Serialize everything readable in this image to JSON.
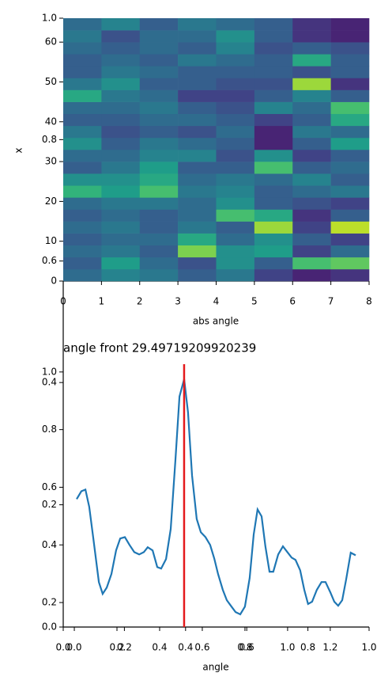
{
  "chart_data": [
    {
      "type": "heatmap",
      "ylabel": "x",
      "xlabel": "abs angle",
      "colormap": "viridis",
      "xlim": [
        0,
        8
      ],
      "xticks": [
        0,
        1,
        2,
        3,
        4,
        5,
        6,
        7,
        8
      ],
      "ylim": [
        0,
        66
      ],
      "yticks": [
        0,
        10,
        20,
        30,
        40,
        50,
        60
      ],
      "y2lim": [
        0.567,
        1.0
      ],
      "y2ticks": [
        0.6,
        0.8,
        {
          "value": 1,
          "label": "1.0"
        }
      ],
      "z": [
        [
          0.35,
          0.45,
          0.4,
          0.3,
          0.4,
          0.2,
          0.1,
          0.15
        ],
        [
          0.3,
          0.55,
          0.35,
          0.25,
          0.5,
          0.3,
          0.7,
          0.75
        ],
        [
          0.35,
          0.4,
          0.3,
          0.8,
          0.5,
          0.55,
          0.2,
          0.35
        ],
        [
          0.3,
          0.35,
          0.35,
          0.6,
          0.35,
          0.5,
          0.3,
          0.2
        ],
        [
          0.35,
          0.4,
          0.3,
          0.4,
          0.3,
          0.85,
          0.2,
          0.9
        ],
        [
          0.3,
          0.35,
          0.3,
          0.35,
          0.7,
          0.6,
          0.15,
          0.3
        ],
        [
          0.35,
          0.4,
          0.4,
          0.35,
          0.5,
          0.3,
          0.25,
          0.2
        ],
        [
          0.65,
          0.55,
          0.7,
          0.4,
          0.45,
          0.3,
          0.35,
          0.4
        ],
        [
          0.5,
          0.5,
          0.6,
          0.35,
          0.4,
          0.35,
          0.45,
          0.3
        ],
        [
          0.3,
          0.4,
          0.55,
          0.3,
          0.3,
          0.7,
          0.3,
          0.35
        ],
        [
          0.35,
          0.35,
          0.45,
          0.45,
          0.25,
          0.5,
          0.2,
          0.3
        ],
        [
          0.5,
          0.3,
          0.4,
          0.35,
          0.3,
          0.1,
          0.3,
          0.55
        ],
        [
          0.4,
          0.25,
          0.3,
          0.25,
          0.35,
          0.1,
          0.4,
          0.35
        ],
        [
          0.3,
          0.3,
          0.35,
          0.35,
          0.3,
          0.2,
          0.3,
          0.6
        ],
        [
          0.35,
          0.35,
          0.4,
          0.3,
          0.25,
          0.45,
          0.35,
          0.7
        ],
        [
          0.6,
          0.4,
          0.35,
          0.2,
          0.2,
          0.3,
          0.45,
          0.3
        ],
        [
          0.4,
          0.5,
          0.3,
          0.3,
          0.25,
          0.25,
          0.85,
          0.15
        ],
        [
          0.3,
          0.4,
          0.35,
          0.3,
          0.3,
          0.3,
          0.25,
          0.3
        ],
        [
          0.3,
          0.35,
          0.3,
          0.4,
          0.35,
          0.3,
          0.6,
          0.3
        ],
        [
          0.35,
          0.3,
          0.35,
          0.3,
          0.45,
          0.25,
          0.3,
          0.25
        ],
        [
          0.4,
          0.25,
          0.35,
          0.35,
          0.5,
          0.3,
          0.15,
          0.1
        ],
        [
          0.35,
          0.45,
          0.3,
          0.4,
          0.35,
          0.3,
          0.15,
          0.1
        ]
      ]
    },
    {
      "type": "line",
      "title": "angle front 29.49719209920239",
      "xlabel": "angle",
      "color": "#1f77b4",
      "xlim": [
        -0.052,
        1.382
      ],
      "xticks": [
        {
          "value": 0,
          "label": "0.0"
        },
        0.2,
        0.4,
        0.6,
        0.8,
        {
          "value": 1,
          "label": "1.0"
        },
        1.2
      ],
      "ylim": [
        0.115,
        1.027
      ],
      "yticks": [
        0.2,
        0.4,
        0.6,
        0.8,
        {
          "value": 1,
          "label": "1.0"
        }
      ],
      "x2lim": [
        0,
        1
      ],
      "x2ticks": [
        {
          "value": 0,
          "label": "0.0"
        },
        0.2,
        0.4,
        0.6,
        0.8,
        {
          "value": 1,
          "label": "1.0"
        }
      ],
      "y2lim": [
        0,
        0.43
      ],
      "y2ticks": [
        {
          "value": 0,
          "label": "0.0"
        },
        0.2,
        0.4
      ],
      "vline_x": 0.5148,
      "vline_color": "#e41a1c",
      "x": [
        0.011,
        0.033,
        0.052,
        0.07,
        0.089,
        0.115,
        0.133,
        0.152,
        0.174,
        0.196,
        0.215,
        0.237,
        0.259,
        0.281,
        0.304,
        0.326,
        0.344,
        0.367,
        0.389,
        0.407,
        0.43,
        0.452,
        0.474,
        0.493,
        0.515,
        0.533,
        0.552,
        0.574,
        0.593,
        0.615,
        0.637,
        0.656,
        0.674,
        0.696,
        0.715,
        0.737,
        0.756,
        0.778,
        0.8,
        0.822,
        0.841,
        0.859,
        0.878,
        0.896,
        0.915,
        0.933,
        0.956,
        0.978,
        0.996,
        1.019,
        1.037,
        1.059,
        1.078,
        1.096,
        1.115,
        1.137,
        1.159,
        1.178,
        1.2,
        1.219,
        1.237,
        1.256,
        1.274,
        1.296,
        1.319
      ],
      "values": [
        0.559,
        0.586,
        0.592,
        0.532,
        0.422,
        0.271,
        0.23,
        0.252,
        0.299,
        0.381,
        0.422,
        0.427,
        0.4,
        0.375,
        0.367,
        0.375,
        0.392,
        0.381,
        0.323,
        0.318,
        0.351,
        0.455,
        0.696,
        0.915,
        0.975,
        0.86,
        0.641,
        0.49,
        0.444,
        0.427,
        0.4,
        0.353,
        0.299,
        0.244,
        0.208,
        0.186,
        0.167,
        0.159,
        0.186,
        0.285,
        0.436,
        0.523,
        0.499,
        0.395,
        0.307,
        0.307,
        0.367,
        0.395,
        0.378,
        0.356,
        0.348,
        0.312,
        0.244,
        0.195,
        0.203,
        0.244,
        0.271,
        0.271,
        0.236,
        0.203,
        0.189,
        0.208,
        0.279,
        0.373,
        0.364
      ]
    }
  ]
}
